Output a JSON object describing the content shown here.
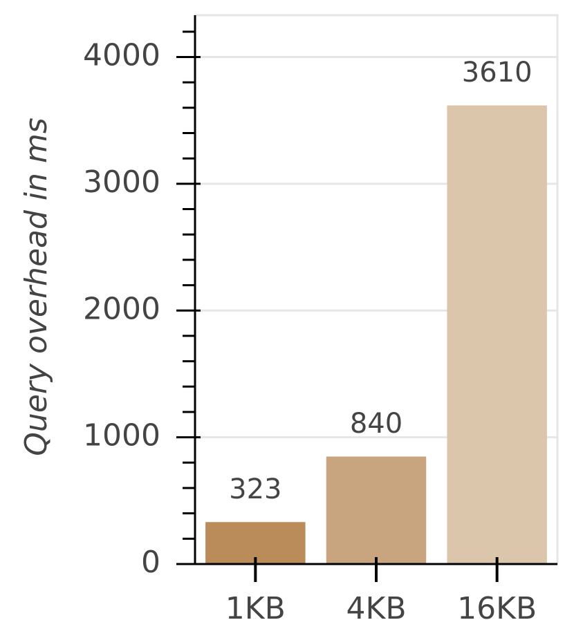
{
  "chart_data": {
    "type": "bar",
    "y_label": "Query overhead in ms",
    "categories": [
      "1KB",
      "4KB",
      "16KB"
    ],
    "values": [
      323,
      840,
      3610
    ],
    "colors": [
      "#c4935e",
      "#d2ae86",
      "#e8d0b4"
    ],
    "ylim": [
      0,
      4330
    ],
    "yticks": [
      0,
      1000,
      2000,
      3000,
      4000
    ],
    "yticks_minor": [
      200,
      400,
      600,
      800,
      1200,
      1400,
      1600,
      1800,
      2200,
      2400,
      2600,
      2800,
      3200,
      3400,
      3600,
      3800,
      4200
    ],
    "grid": true
  }
}
